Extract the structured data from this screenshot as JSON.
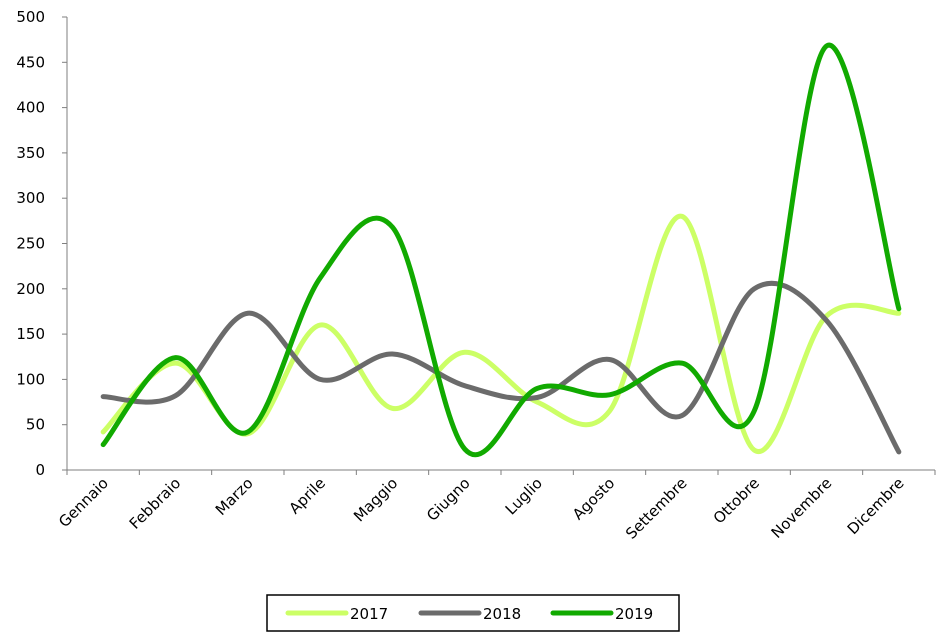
{
  "chart_data": {
    "type": "line",
    "categories": [
      "Gennaio",
      "Febbraio",
      "Marzo",
      "Aprile",
      "Maggio",
      "Giugno",
      "Luglio",
      "Agosto",
      "Settembre",
      "Ottobre",
      "Novembre",
      "Dicembre"
    ],
    "series": [
      {
        "name": "2017",
        "color": "#ccff66",
        "values": [
          42,
          118,
          40,
          160,
          68,
          130,
          75,
          65,
          280,
          22,
          170,
          173
        ]
      },
      {
        "name": "2018",
        "color": "#6b6b6b",
        "values": [
          81,
          82,
          173,
          100,
          128,
          93,
          80,
          122,
          60,
          200,
          165,
          20
        ]
      },
      {
        "name": "2019",
        "color": "#11aa00",
        "values": [
          28,
          124,
          42,
          212,
          268,
          23,
          90,
          83,
          118,
          65,
          468,
          178
        ]
      }
    ],
    "ylim": [
      0,
      500
    ],
    "yticks": [
      0,
      50,
      100,
      150,
      200,
      250,
      300,
      350,
      400,
      450,
      500
    ],
    "grid": false,
    "legend_position": "bottom",
    "smooth": true
  }
}
